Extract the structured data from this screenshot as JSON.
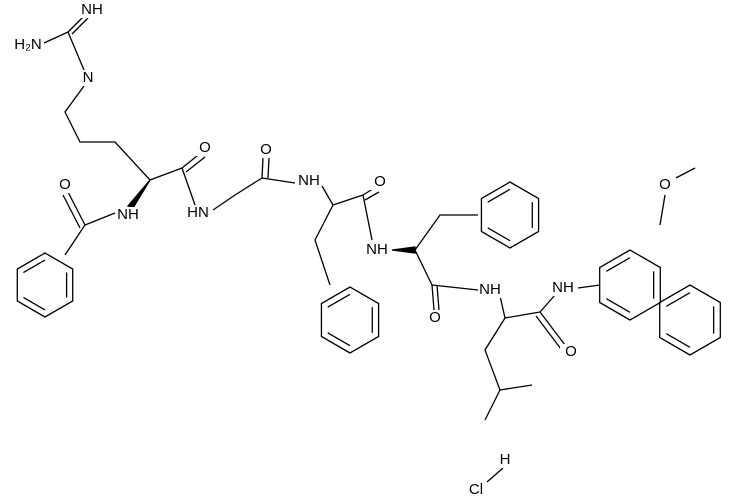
{
  "atoms": [
    {
      "label": "NH"
    },
    {
      "label": "H₂N"
    },
    {
      "label": "N"
    },
    {
      "label": "NH"
    },
    {
      "label": "O"
    },
    {
      "label": "O"
    },
    {
      "label": "HN"
    },
    {
      "label": "O"
    },
    {
      "label": "NH"
    },
    {
      "label": "O"
    },
    {
      "label": "NH"
    },
    {
      "label": "O"
    },
    {
      "label": "NH"
    },
    {
      "label": "NH"
    },
    {
      "label": "O"
    },
    {
      "label": "O"
    },
    {
      "label": "H"
    },
    {
      "label": "Cl"
    }
  ]
}
